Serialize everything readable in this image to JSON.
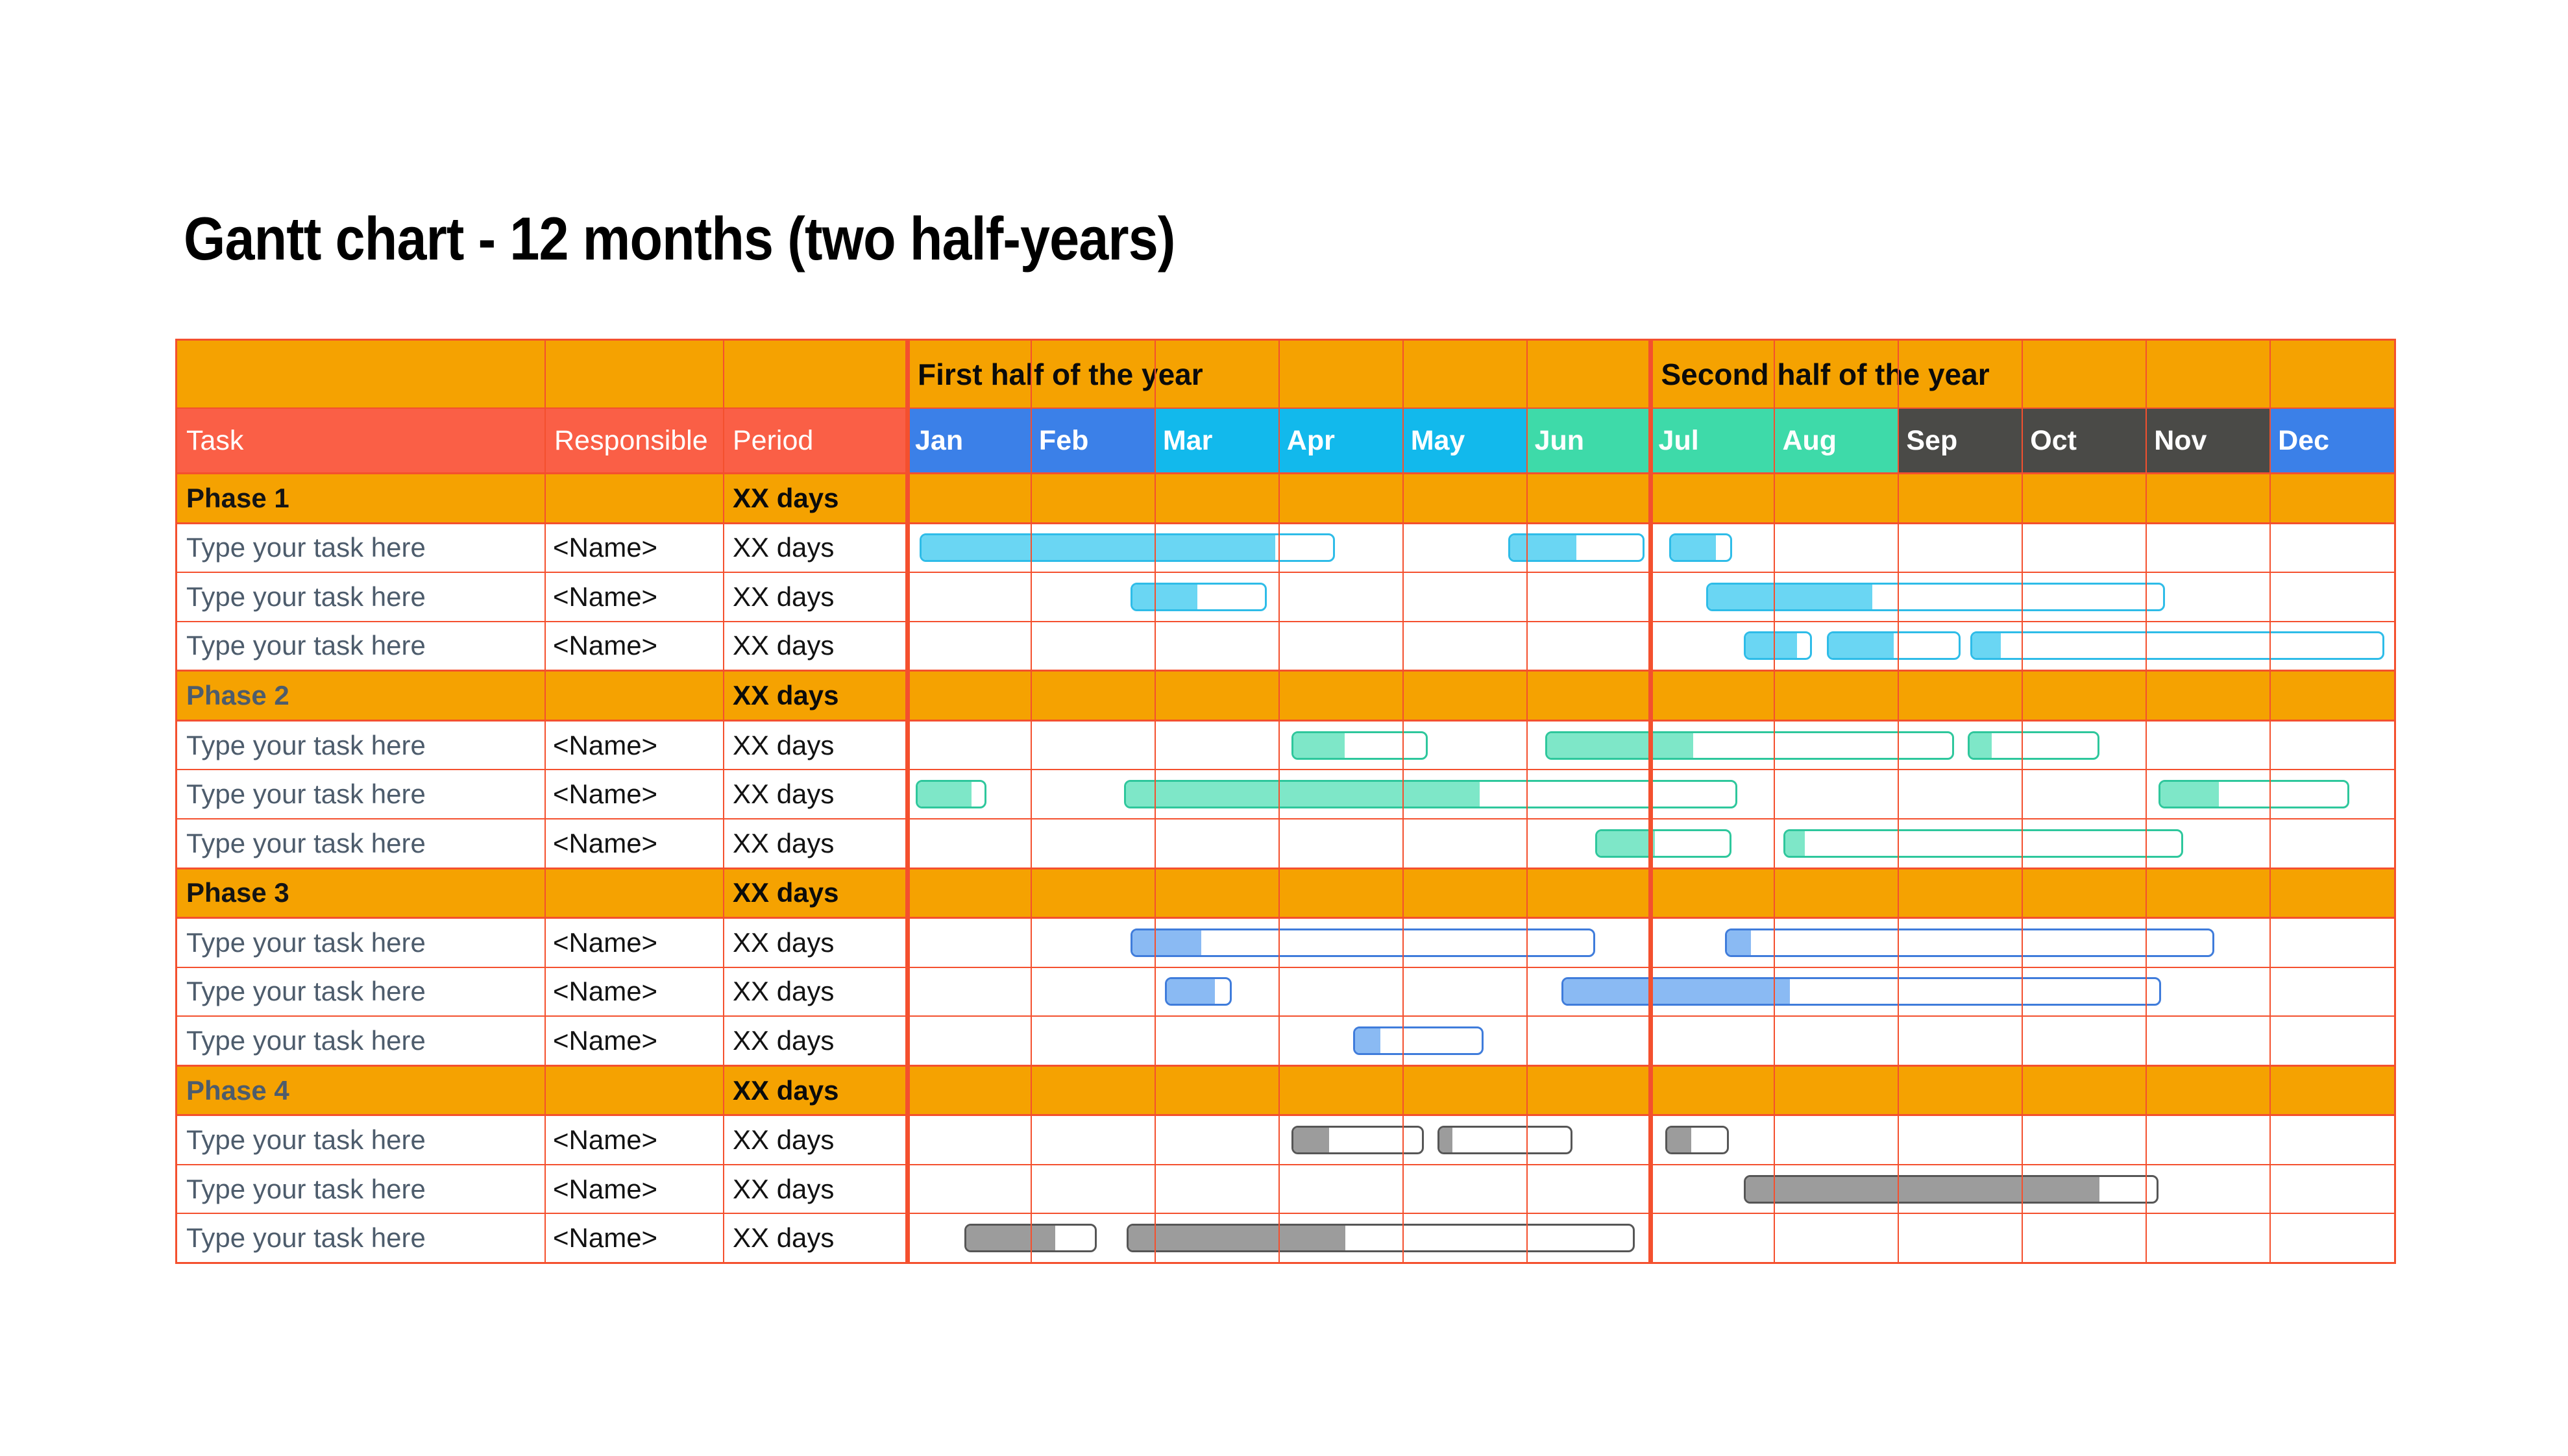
{
  "title": {
    "main": "Gantt chart - 12 months ",
    "paren": "(two half-years)"
  },
  "table": {
    "column_headers": {
      "task": "Task",
      "responsible": "Responsible",
      "period": "Period"
    },
    "half_year_headers": {
      "first": "First half of the year",
      "second": "Second half of the year"
    }
  },
  "colors": {
    "grid_line": "#F4502E",
    "header_orange": "#F5A201",
    "header_red": "#FA5F46",
    "month_blue": "#3B80E8",
    "month_cyan": "#12B9EC",
    "month_green": "#3EDAA9",
    "month_dark": "#4A4A47",
    "task_text": "#4D5C6C",
    "phase_text_dark": "#141414",
    "phase_text_slate": "#4D5C6C",
    "palettes": {
      "phase1": {
        "border": "#2EBCE8",
        "fill": "#6AD6F3"
      },
      "phase2": {
        "border": "#2EC79C",
        "fill": "#7EE7C8"
      },
      "phase3": {
        "border": "#3F7CDB",
        "fill": "#8ABAF3"
      },
      "phase4": {
        "border": "#565656",
        "fill": "#9C9C9C"
      }
    }
  },
  "chart_data": {
    "type": "bar",
    "variant": "gantt",
    "x_unit": "months (0 = Jan 1, 12 = Dec 31)",
    "x_range": [
      0,
      12
    ],
    "grid": true,
    "half_year_divider_positions": [
      0,
      6
    ],
    "months": [
      {
        "label": "Jan",
        "color": "#3B80E8"
      },
      {
        "label": "Feb",
        "color": "#3B80E8"
      },
      {
        "label": "Mar",
        "color": "#12B9EC"
      },
      {
        "label": "Apr",
        "color": "#12B9EC"
      },
      {
        "label": "May",
        "color": "#12B9EC"
      },
      {
        "label": "Jun",
        "color": "#3EDAA9"
      },
      {
        "label": "Jul",
        "color": "#3EDAA9"
      },
      {
        "label": "Aug",
        "color": "#3EDAA9"
      },
      {
        "label": "Sep",
        "color": "#4A4A47"
      },
      {
        "label": "Oct",
        "color": "#4A4A47"
      },
      {
        "label": "Nov",
        "color": "#4A4A47"
      },
      {
        "label": "Dec",
        "color": "#3B80E8"
      }
    ],
    "rows": [
      {
        "kind": "phase",
        "task": "Phase 1",
        "responsible": "",
        "period": "XX days",
        "label_color": "#141414"
      },
      {
        "kind": "task",
        "task": "Type your task here",
        "responsible": "<Name>",
        "period": "XX days",
        "palette": "phase1",
        "bars": [
          {
            "s": 0.1,
            "e": 3.45,
            "f": 0.86
          },
          {
            "s": 4.85,
            "e": 5.95,
            "f": 0.5
          },
          {
            "s": 6.15,
            "e": 6.66,
            "f": 0.75
          }
        ]
      },
      {
        "kind": "task",
        "task": "Type your task here",
        "responsible": "<Name>",
        "period": "XX days",
        "palette": "phase1",
        "bars": [
          {
            "s": 1.8,
            "e": 2.9,
            "f": 0.49
          },
          {
            "s": 6.45,
            "e": 10.15,
            "f": 0.36
          }
        ]
      },
      {
        "kind": "task",
        "task": "Type your task here",
        "responsible": "<Name>",
        "period": "XX days",
        "palette": "phase1",
        "bars": [
          {
            "s": 6.75,
            "e": 7.3,
            "f": 0.8
          },
          {
            "s": 7.42,
            "e": 8.5,
            "f": 0.5
          },
          {
            "s": 8.58,
            "e": 11.92,
            "f": 0.07
          }
        ]
      },
      {
        "kind": "phase",
        "task": "Phase 2",
        "responsible": "",
        "period": "XX days",
        "label_color": "#4D5C6C"
      },
      {
        "kind": "task",
        "task": "Type your task here",
        "responsible": "<Name>",
        "period": "XX days",
        "palette": "phase2",
        "bars": [
          {
            "s": 3.1,
            "e": 4.2,
            "f": 0.39
          },
          {
            "s": 5.15,
            "e": 8.45,
            "f": 0.36
          },
          {
            "s": 8.56,
            "e": 9.62,
            "f": 0.17
          }
        ]
      },
      {
        "kind": "task",
        "task": "Type your task here",
        "responsible": "<Name>",
        "period": "XX days",
        "palette": "phase2",
        "bars": [
          {
            "s": 0.07,
            "e": 0.64,
            "f": 0.8
          },
          {
            "s": 1.75,
            "e": 6.7,
            "f": 0.58
          },
          {
            "s": 10.1,
            "e": 11.64,
            "f": 0.31
          }
        ]
      },
      {
        "kind": "task",
        "task": "Type your task here",
        "responsible": "<Name>",
        "period": "XX days",
        "palette": "phase2",
        "bars": [
          {
            "s": 5.55,
            "e": 6.65,
            "f": 0.44
          },
          {
            "s": 7.07,
            "e": 10.3,
            "f": 0.05
          }
        ]
      },
      {
        "kind": "phase",
        "task": "Phase 3",
        "responsible": "",
        "period": "XX days",
        "label_color": "#141414"
      },
      {
        "kind": "task",
        "task": "Type your task here",
        "responsible": "<Name>",
        "period": "XX days",
        "palette": "phase3",
        "bars": [
          {
            "s": 1.8,
            "e": 5.55,
            "f": 0.15
          },
          {
            "s": 6.6,
            "e": 10.55,
            "f": 0.05
          }
        ]
      },
      {
        "kind": "task",
        "task": "Type your task here",
        "responsible": "<Name>",
        "period": "XX days",
        "palette": "phase3",
        "bars": [
          {
            "s": 2.08,
            "e": 2.62,
            "f": 0.76
          },
          {
            "s": 5.28,
            "e": 10.12,
            "f": 0.38
          }
        ]
      },
      {
        "kind": "task",
        "task": "Type your task here",
        "responsible": "<Name>",
        "period": "XX days",
        "palette": "phase3",
        "bars": [
          {
            "s": 3.6,
            "e": 4.65,
            "f": 0.2
          }
        ]
      },
      {
        "kind": "phase",
        "task": "Phase 4",
        "responsible": "",
        "period": "XX days",
        "label_color": "#4D5C6C"
      },
      {
        "kind": "task",
        "task": "Type your task here",
        "responsible": "<Name>",
        "period": "XX days",
        "palette": "phase4",
        "bars": [
          {
            "s": 3.1,
            "e": 4.17,
            "f": 0.28
          },
          {
            "s": 4.28,
            "e": 5.37,
            "f": 0.1
          },
          {
            "s": 6.12,
            "e": 6.63,
            "f": 0.4
          }
        ]
      },
      {
        "kind": "task",
        "task": "Type your task here",
        "responsible": "<Name>",
        "period": "XX days",
        "palette": "phase4",
        "bars": [
          {
            "s": 6.75,
            "e": 10.1,
            "f": 0.86
          }
        ]
      },
      {
        "kind": "task",
        "task": "Type your task here",
        "responsible": "<Name>",
        "period": "XX days",
        "palette": "phase4",
        "bars": [
          {
            "s": 0.46,
            "e": 1.53,
            "f": 0.69
          },
          {
            "s": 1.77,
            "e": 5.87,
            "f": 0.43
          }
        ]
      }
    ]
  }
}
